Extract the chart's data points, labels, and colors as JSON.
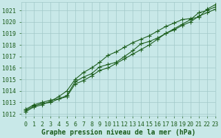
{
  "xlabel": "Graphe pression niveau de la mer (hPa)",
  "xlim": [
    -0.5,
    23
  ],
  "ylim": [
    1011.8,
    1021.7
  ],
  "yticks": [
    1012,
    1013,
    1014,
    1015,
    1016,
    1017,
    1018,
    1019,
    1020,
    1021
  ],
  "xticks": [
    0,
    1,
    2,
    3,
    4,
    5,
    6,
    7,
    8,
    9,
    10,
    11,
    12,
    13,
    14,
    15,
    16,
    17,
    18,
    19,
    20,
    21,
    22,
    23
  ],
  "bg_color": "#c8e8e8",
  "grid_color": "#a0c8c8",
  "line_color": "#1a5c1a",
  "line1_y": [
    1012.3,
    1012.7,
    1012.9,
    1013.0,
    1013.3,
    1013.6,
    1014.8,
    1015.2,
    1015.5,
    1016.1,
    1016.3,
    1016.5,
    1017.0,
    1017.5,
    1018.1,
    1018.3,
    1018.6,
    1019.0,
    1019.4,
    1019.8,
    1020.2,
    1020.8,
    1021.0,
    1021.3
  ],
  "line2_y": [
    1012.2,
    1012.6,
    1012.8,
    1013.1,
    1013.5,
    1014.0,
    1015.0,
    1015.6,
    1016.0,
    1016.5,
    1017.1,
    1017.4,
    1017.8,
    1018.2,
    1018.5,
    1018.8,
    1019.2,
    1019.6,
    1019.9,
    1020.2,
    1020.3,
    1020.4,
    1021.1,
    1021.5
  ],
  "line3_y": [
    1012.4,
    1012.8,
    1013.0,
    1013.2,
    1013.3,
    1013.5,
    1014.6,
    1014.9,
    1015.3,
    1015.8,
    1016.0,
    1016.4,
    1016.8,
    1017.2,
    1017.6,
    1018.0,
    1018.5,
    1019.0,
    1019.3,
    1019.7,
    1020.0,
    1020.5,
    1020.8,
    1021.1
  ],
  "marker_size": 2.2,
  "linewidth": 0.8,
  "font_color": "#1a5c1a",
  "tick_fontsize": 6.0,
  "xlabel_fontsize": 7.0
}
